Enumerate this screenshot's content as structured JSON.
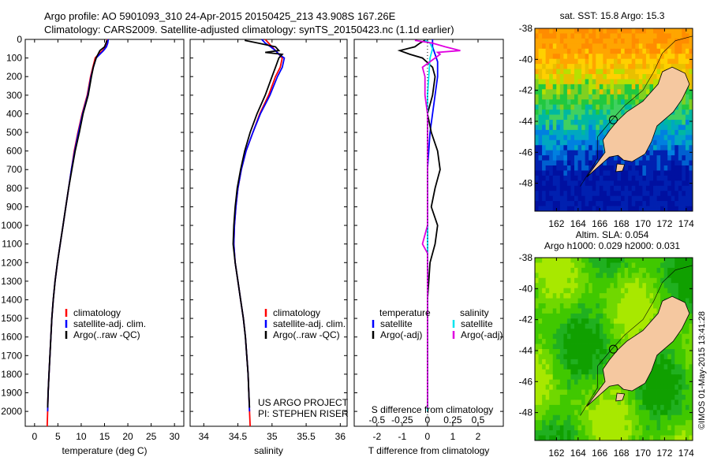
{
  "header": {
    "line1": "Argo profile: AO 5901093_310 24-Apr-2015 20150425_213 43.908S 167.26E",
    "line2": "Climatology: CARS2009. Satellite-adjusted climatology: synTS_20150423.nc (1.1d earlier)"
  },
  "colors": {
    "climatology": "#ff0000",
    "satellite": "#0000ff",
    "argo": "#000000",
    "sat_salinity": "#00e5ee",
    "argo_salinity": "#e000e0",
    "land": "#f5c8a0"
  },
  "chart_data": [
    {
      "type": "line",
      "id": "temperature",
      "xlabel": "temperature (deg C)",
      "ylabel": "",
      "xlim": [
        -2,
        32
      ],
      "ylim": [
        2080,
        0
      ],
      "xticks": [
        0,
        5,
        10,
        15,
        20,
        25,
        30
      ],
      "yticks": [
        0,
        100,
        200,
        300,
        400,
        500,
        600,
        700,
        800,
        900,
        1000,
        1100,
        1200,
        1300,
        1400,
        1500,
        1600,
        1700,
        1800,
        1900,
        2000
      ],
      "legend": [
        "climatology",
        "satellite-adj. clim.",
        "Argo(..raw -QC)"
      ],
      "series": [
        {
          "name": "climatology",
          "color": "#ff0000",
          "points": [
            [
              15.6,
              0
            ],
            [
              15.5,
              20
            ],
            [
              15.3,
              40
            ],
            [
              14.6,
              60
            ],
            [
              13.7,
              80
            ],
            [
              13.0,
              100
            ],
            [
              12.5,
              150
            ],
            [
              12.0,
              200
            ],
            [
              11.3,
              300
            ],
            [
              10.2,
              400
            ],
            [
              9.3,
              500
            ],
            [
              8.5,
              600
            ],
            [
              7.9,
              700
            ],
            [
              7.3,
              800
            ],
            [
              6.7,
              900
            ],
            [
              6.1,
              1000
            ],
            [
              5.5,
              1100
            ],
            [
              4.9,
              1200
            ],
            [
              4.4,
              1300
            ],
            [
              4.0,
              1400
            ],
            [
              3.7,
              1500
            ],
            [
              3.5,
              1600
            ],
            [
              3.3,
              1700
            ],
            [
              3.1,
              1800
            ],
            [
              2.9,
              1900
            ],
            [
              2.8,
              2000
            ],
            [
              2.7,
              2080
            ]
          ]
        },
        {
          "name": "satellite-adj. clim.",
          "color": "#0000ff",
          "points": [
            [
              15.8,
              0
            ],
            [
              15.7,
              20
            ],
            [
              15.4,
              40
            ],
            [
              14.8,
              60
            ],
            [
              14.0,
              80
            ],
            [
              13.2,
              100
            ],
            [
              12.6,
              150
            ],
            [
              12.1,
              200
            ],
            [
              11.4,
              300
            ],
            [
              10.3,
              400
            ],
            [
              9.4,
              500
            ],
            [
              8.6,
              600
            ],
            [
              7.9,
              700
            ],
            [
              7.3,
              800
            ],
            [
              6.7,
              900
            ],
            [
              6.1,
              1000
            ],
            [
              5.5,
              1100
            ],
            [
              4.9,
              1200
            ],
            [
              4.4,
              1300
            ],
            [
              4.0,
              1400
            ],
            [
              3.7,
              1500
            ],
            [
              3.5,
              1600
            ],
            [
              3.3,
              1700
            ],
            [
              3.1,
              1800
            ],
            [
              2.9,
              1900
            ],
            [
              2.8,
              2000
            ]
          ]
        },
        {
          "name": "Argo(..raw -QC)",
          "color": "#000000",
          "points": [
            [
              15.5,
              5
            ],
            [
              15.3,
              20
            ],
            [
              15.0,
              40
            ],
            [
              14.0,
              60
            ],
            [
              13.6,
              80
            ],
            [
              13.2,
              100
            ],
            [
              12.6,
              150
            ],
            [
              12.2,
              200
            ],
            [
              11.5,
              300
            ],
            [
              10.4,
              400
            ],
            [
              9.6,
              500
            ],
            [
              8.7,
              600
            ],
            [
              8.0,
              700
            ],
            [
              7.3,
              800
            ],
            [
              6.7,
              900
            ],
            [
              6.1,
              1000
            ],
            [
              5.5,
              1100
            ],
            [
              4.9,
              1200
            ],
            [
              4.4,
              1300
            ],
            [
              4.0,
              1400
            ],
            [
              3.7,
              1500
            ],
            [
              3.5,
              1600
            ],
            [
              3.3,
              1700
            ],
            [
              3.1,
              1800
            ],
            [
              2.9,
              1900
            ],
            [
              2.8,
              1980
            ]
          ]
        }
      ]
    },
    {
      "type": "line",
      "id": "salinity",
      "xlabel": "salinity",
      "ylabel": "",
      "xlim": [
        33.8,
        36.1
      ],
      "ylim": [
        2080,
        0
      ],
      "xticks": [
        34,
        34.5,
        35,
        35.5,
        36
      ],
      "legend": [
        "climatology",
        "satellite-adj. clim.",
        "Argo(..raw -QC)"
      ],
      "annotation": [
        "US ARGO PROJECT",
        "PI: STEPHEN RISER"
      ],
      "series": [
        {
          "name": "climatology",
          "color": "#ff0000",
          "points": [
            [
              34.9,
              0
            ],
            [
              34.95,
              20
            ],
            [
              35.0,
              40
            ],
            [
              35.05,
              60
            ],
            [
              35.1,
              80
            ],
            [
              35.15,
              100
            ],
            [
              35.12,
              150
            ],
            [
              35.05,
              200
            ],
            [
              34.95,
              300
            ],
            [
              34.82,
              400
            ],
            [
              34.72,
              500
            ],
            [
              34.62,
              600
            ],
            [
              34.55,
              700
            ],
            [
              34.5,
              800
            ],
            [
              34.47,
              900
            ],
            [
              34.45,
              1000
            ],
            [
              34.44,
              1100
            ],
            [
              34.46,
              1200
            ],
            [
              34.5,
              1300
            ],
            [
              34.54,
              1400
            ],
            [
              34.58,
              1500
            ],
            [
              34.61,
              1600
            ],
            [
              34.63,
              1700
            ],
            [
              34.65,
              1800
            ],
            [
              34.66,
              1900
            ],
            [
              34.67,
              2000
            ],
            [
              34.68,
              2080
            ]
          ]
        },
        {
          "name": "satellite-adj. clim.",
          "color": "#0000ff",
          "points": [
            [
              34.85,
              0
            ],
            [
              34.9,
              20
            ],
            [
              34.98,
              40
            ],
            [
              35.05,
              60
            ],
            [
              35.1,
              80
            ],
            [
              35.18,
              100
            ],
            [
              35.15,
              150
            ],
            [
              35.08,
              200
            ],
            [
              34.97,
              300
            ],
            [
              34.83,
              400
            ],
            [
              34.72,
              500
            ],
            [
              34.62,
              600
            ],
            [
              34.55,
              700
            ],
            [
              34.5,
              800
            ],
            [
              34.47,
              900
            ],
            [
              34.45,
              1000
            ],
            [
              34.44,
              1100
            ],
            [
              34.46,
              1200
            ],
            [
              34.5,
              1300
            ],
            [
              34.54,
              1400
            ],
            [
              34.58,
              1500
            ],
            [
              34.61,
              1600
            ],
            [
              34.63,
              1700
            ],
            [
              34.65,
              1800
            ],
            [
              34.66,
              1900
            ],
            [
              34.67,
              2000
            ]
          ]
        },
        {
          "name": "Argo(..raw -QC)",
          "color": "#000000",
          "points": [
            [
              34.6,
              5
            ],
            [
              34.8,
              20
            ],
            [
              35.05,
              40
            ],
            [
              35.1,
              60
            ],
            [
              34.9,
              70
            ],
            [
              35.15,
              80
            ],
            [
              35.1,
              100
            ],
            [
              35.05,
              150
            ],
            [
              35.0,
              200
            ],
            [
              34.9,
              300
            ],
            [
              34.78,
              400
            ],
            [
              34.68,
              500
            ],
            [
              34.6,
              600
            ],
            [
              34.54,
              700
            ],
            [
              34.49,
              800
            ],
            [
              34.46,
              900
            ],
            [
              34.44,
              1000
            ],
            [
              34.43,
              1100
            ],
            [
              34.46,
              1200
            ],
            [
              34.5,
              1300
            ],
            [
              34.54,
              1400
            ],
            [
              34.58,
              1500
            ],
            [
              34.61,
              1600
            ],
            [
              34.63,
              1700
            ],
            [
              34.65,
              1800
            ],
            [
              34.66,
              1900
            ],
            [
              34.67,
              1980
            ]
          ]
        }
      ]
    },
    {
      "type": "line",
      "id": "difference",
      "xlabel": "T difference from climatology",
      "xlabel_top": "S difference from climatology",
      "xlim": [
        -2.9,
        3.0
      ],
      "ylim": [
        2080,
        0
      ],
      "xticks": [
        -2,
        -1,
        0,
        1,
        2
      ],
      "xticks_s": [
        "-0.5",
        "-0.25",
        "0",
        "0.25",
        "0.5"
      ],
      "legend_t_title": "temperature",
      "legend_s_title": "salinity",
      "legend": [
        "satellite",
        "Argo(-adj)",
        "satellite",
        "Argo(-adj)"
      ],
      "series": [
        {
          "name": "T satellite",
          "color": "#0000ff",
          "points": [
            [
              0.2,
              0
            ],
            [
              0.2,
              40
            ],
            [
              0.3,
              80
            ],
            [
              0.4,
              120
            ],
            [
              0.4,
              200
            ],
            [
              0.3,
              300
            ],
            [
              0.2,
              400
            ],
            [
              0.1,
              500
            ],
            [
              0.05,
              600
            ],
            [
              0,
              700
            ],
            [
              0,
              2000
            ]
          ]
        },
        {
          "name": "T Argo(-adj)",
          "color": "#000000",
          "points": [
            [
              -0.1,
              5
            ],
            [
              -0.3,
              20
            ],
            [
              -0.5,
              40
            ],
            [
              -1.1,
              60
            ],
            [
              -0.7,
              80
            ],
            [
              -0.2,
              100
            ],
            [
              0.2,
              150
            ],
            [
              0.3,
              200
            ],
            [
              0.2,
              300
            ],
            [
              0.0,
              400
            ],
            [
              0.15,
              500
            ],
            [
              0.4,
              600
            ],
            [
              0.5,
              700
            ],
            [
              0.3,
              800
            ],
            [
              0.15,
              900
            ],
            [
              0.4,
              1000
            ],
            [
              0.3,
              1100
            ],
            [
              0.1,
              1200
            ],
            [
              0.05,
              1300
            ],
            [
              0,
              1400
            ],
            [
              0,
              1980
            ]
          ]
        },
        {
          "name": "S satellite",
          "color": "#00e5ee",
          "points": [
            [
              -0.1,
              5
            ],
            [
              0.1,
              20
            ],
            [
              0.2,
              50
            ],
            [
              0.1,
              100
            ],
            [
              0.05,
              200
            ],
            [
              0,
              300
            ],
            [
              0,
              2000
            ]
          ]
        },
        {
          "name": "S Argo(-adj)",
          "color": "#e000e0",
          "points": [
            [
              -0.5,
              5
            ],
            [
              0.2,
              20
            ],
            [
              0.7,
              40
            ],
            [
              1.3,
              60
            ],
            [
              0.4,
              70
            ],
            [
              0.5,
              80
            ],
            [
              0.3,
              100
            ],
            [
              -0.2,
              150
            ],
            [
              -0.1,
              200
            ],
            [
              -0.1,
              300
            ],
            [
              0,
              400
            ],
            [
              0,
              1000
            ],
            [
              -0.2,
              1100
            ],
            [
              0,
              1150
            ],
            [
              0,
              1980
            ]
          ]
        }
      ]
    }
  ],
  "maps": {
    "sst": {
      "title": "sat. SST: 15.8 Argo: 15.3",
      "xticks": [
        162,
        164,
        166,
        168,
        170,
        172,
        174
      ],
      "yticks": [
        -38,
        -40,
        -42,
        -44,
        -46,
        -48
      ]
    },
    "sla": {
      "title_line1": "Altim. SLA: 0.054",
      "title_line2": "Argo h1000: 0.029 h2000: 0.031",
      "xticks": [
        162,
        164,
        166,
        168,
        170,
        172,
        174
      ],
      "yticks": [
        -38,
        -40,
        -42,
        -44,
        -46,
        -48
      ]
    },
    "argo_location": {
      "lon": 167.26,
      "lat": -43.908
    }
  },
  "credit": "©IMOS 01-May-2015 13:41:28"
}
